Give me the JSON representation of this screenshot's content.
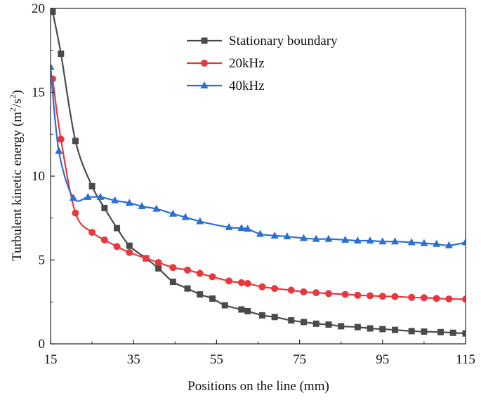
{
  "chart_data": {
    "type": "line",
    "xlabel": "Positions on the line (mm)",
    "ylabel_main": "Turbulent kinetic energy (m",
    "ylabel_sup1": "2",
    "ylabel_mid": "/s",
    "ylabel_sup2": "2",
    "ylabel_end": ")",
    "xlim": [
      15,
      115
    ],
    "ylim": [
      0,
      20
    ],
    "xticks": [
      15,
      35,
      55,
      75,
      95,
      115
    ],
    "yticks": [
      0,
      5,
      10,
      15,
      20
    ],
    "grid": false,
    "legend_position": "top-center",
    "series": [
      {
        "name": "Stationary boundary",
        "color": "#4a4a4a",
        "marker": "square",
        "points": [
          [
            15.5,
            19.8
          ],
          [
            17.5,
            17.3
          ],
          [
            21,
            12.1
          ],
          [
            25,
            9.4
          ],
          [
            28,
            8.1
          ],
          [
            31,
            6.9
          ],
          [
            34,
            5.85
          ],
          [
            38,
            5.1
          ],
          [
            41,
            4.5
          ],
          [
            44.5,
            3.7
          ],
          [
            48,
            3.3
          ],
          [
            51,
            2.95
          ],
          [
            54,
            2.7
          ],
          [
            57,
            2.3
          ],
          [
            61,
            2.05
          ],
          [
            62.5,
            1.95
          ],
          [
            66,
            1.7
          ],
          [
            69,
            1.6
          ],
          [
            73,
            1.4
          ],
          [
            76,
            1.3
          ],
          [
            79,
            1.2
          ],
          [
            82,
            1.15
          ],
          [
            85,
            1.05
          ],
          [
            89,
            1.0
          ],
          [
            92,
            0.92
          ],
          [
            95,
            0.88
          ],
          [
            98,
            0.83
          ],
          [
            102,
            0.76
          ],
          [
            105,
            0.73
          ],
          [
            109,
            0.7
          ],
          [
            112,
            0.66
          ],
          [
            115,
            0.62
          ]
        ]
      },
      {
        "name": "20kHz",
        "color": "#e8383d",
        "marker": "circle",
        "points": [
          [
            15.5,
            15.8
          ],
          [
            17.5,
            12.2
          ],
          [
            21,
            7.8
          ],
          [
            25,
            6.65
          ],
          [
            28,
            6.2
          ],
          [
            31,
            5.8
          ],
          [
            34,
            5.45
          ],
          [
            38,
            5.1
          ],
          [
            41,
            4.85
          ],
          [
            44.5,
            4.55
          ],
          [
            48,
            4.4
          ],
          [
            51,
            4.2
          ],
          [
            54,
            4.0
          ],
          [
            58,
            3.75
          ],
          [
            61,
            3.65
          ],
          [
            62.5,
            3.6
          ],
          [
            66,
            3.4
          ],
          [
            69,
            3.3
          ],
          [
            73,
            3.2
          ],
          [
            76,
            3.1
          ],
          [
            79,
            3.05
          ],
          [
            82,
            3.0
          ],
          [
            86,
            2.95
          ],
          [
            89,
            2.9
          ],
          [
            92,
            2.87
          ],
          [
            95,
            2.84
          ],
          [
            98,
            2.82
          ],
          [
            102,
            2.77
          ],
          [
            105,
            2.75
          ],
          [
            108,
            2.71
          ],
          [
            111,
            2.68
          ],
          [
            115,
            2.66
          ]
        ]
      },
      {
        "name": "40kHz",
        "color": "#2b6fd1",
        "marker": "triangle",
        "points": [
          [
            15,
            16.5
          ],
          [
            17,
            11.5
          ],
          [
            20.5,
            8.7
          ],
          [
            24,
            8.75
          ],
          [
            27,
            8.75
          ],
          [
            30.5,
            8.55
          ],
          [
            34,
            8.4
          ],
          [
            37,
            8.2
          ],
          [
            40.5,
            8.05
          ],
          [
            44.5,
            7.75
          ],
          [
            47.5,
            7.55
          ],
          [
            51,
            7.3
          ],
          [
            58,
            6.95
          ],
          [
            61,
            6.9
          ],
          [
            62.5,
            6.85
          ],
          [
            65.5,
            6.55
          ],
          [
            69,
            6.45
          ],
          [
            72,
            6.4
          ],
          [
            76,
            6.3
          ],
          [
            79,
            6.25
          ],
          [
            82,
            6.25
          ],
          [
            86,
            6.2
          ],
          [
            89,
            6.15
          ],
          [
            92,
            6.15
          ],
          [
            95,
            6.1
          ],
          [
            98,
            6.1
          ],
          [
            102,
            6.05
          ],
          [
            105,
            6.0
          ],
          [
            108,
            5.95
          ],
          [
            111,
            5.87
          ],
          [
            115,
            6.05
          ]
        ]
      }
    ]
  }
}
